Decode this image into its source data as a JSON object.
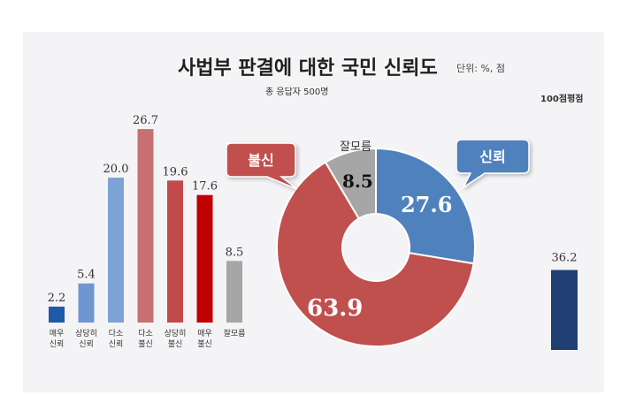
{
  "chart_data": [
    {
      "type": "bar",
      "title": "사법부 판결에 대한 국민 신뢰도",
      "unit": "단위: %, 점",
      "subtitle": "총 응답자 500명",
      "categories": [
        [
          "매우",
          "신뢰"
        ],
        [
          "상당히",
          "신뢰"
        ],
        [
          "다소",
          "신뢰"
        ],
        [
          "다소",
          "불신"
        ],
        [
          "상당히",
          "불신"
        ],
        [
          "매우",
          "불신"
        ],
        [
          "잘모름"
        ]
      ],
      "values": [
        2.2,
        5.4,
        20.0,
        26.7,
        19.6,
        17.6,
        8.5
      ],
      "value_labels": [
        "2.2",
        "5.4",
        "20.0",
        "26.7",
        "19.6",
        "17.6",
        "8.5"
      ],
      "colors": [
        "#1f5aa6",
        "#6f96cf",
        "#7ea3d6",
        "#c76f72",
        "#c24a4c",
        "#c00000",
        "#a6a6a6"
      ],
      "ylim": [
        0,
        30
      ]
    },
    {
      "type": "pie",
      "labels": [
        "신뢰",
        "불신",
        "잘모름"
      ],
      "values": [
        27.6,
        63.9,
        8.5
      ],
      "value_labels": [
        "27.6",
        "63.9",
        "8.5"
      ],
      "colors": [
        "#4f81bd",
        "#c0504d",
        "#a6a6a6"
      ],
      "start": "top",
      "direction": "clockwise",
      "donut": true
    },
    {
      "type": "bar",
      "title": "100점평점",
      "values": [
        36.2
      ],
      "value_labels": [
        "36.2"
      ],
      "colors": [
        "#1f3f73"
      ],
      "ylim": [
        0,
        100
      ]
    }
  ]
}
